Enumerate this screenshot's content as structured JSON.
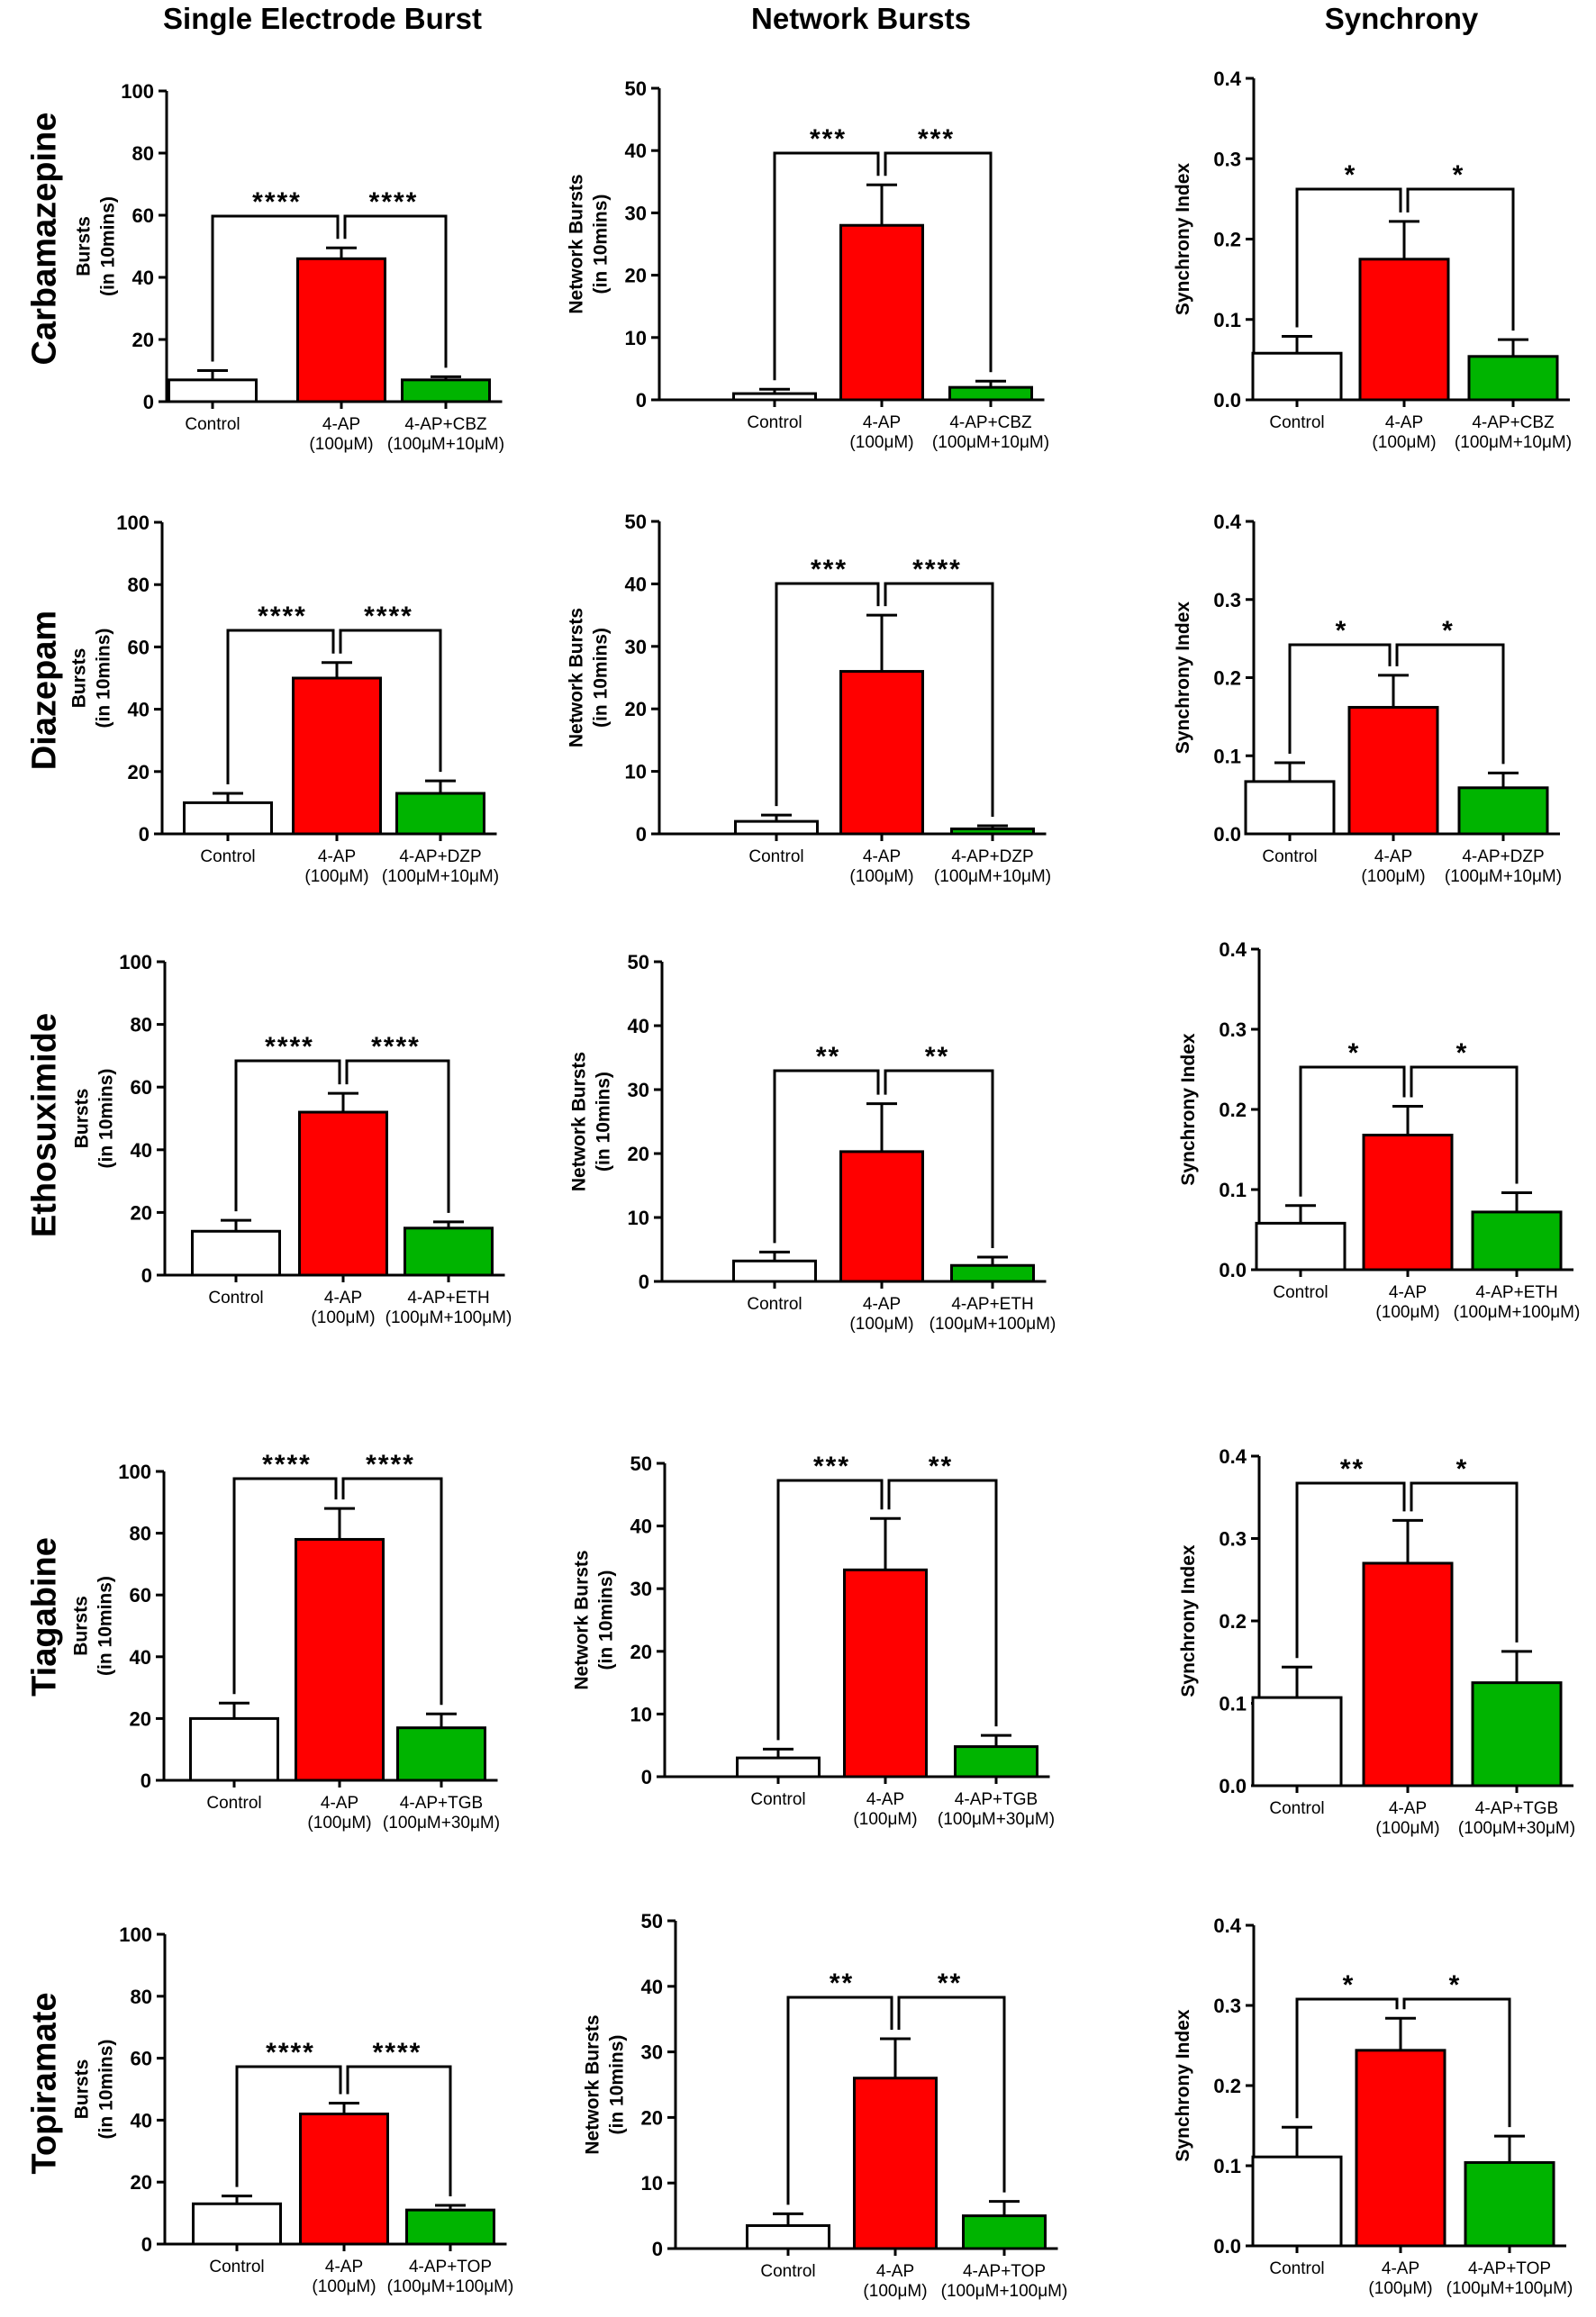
{
  "column_titles": [
    "Single Electrode Burst",
    "Network Bursts",
    "Synchrony"
  ],
  "row_labels": [
    "Carbamazepine",
    "Diazepam",
    "Ethosuximide",
    "Tiagabine",
    "Topiramate"
  ],
  "colors": {
    "control": "#ffffff",
    "fourap": "#ff0000",
    "drug": "#00b400",
    "stroke": "#000000"
  },
  "chart_data": [
    {
      "type": "bar",
      "drug": "Carbamazepine",
      "panel": "Single Electrode Burst",
      "ylabel": [
        "Bursts",
        "(in 10mins)"
      ],
      "ylim": [
        0,
        100
      ],
      "yticks": [
        "0",
        "20",
        "40",
        "60",
        "80",
        "100"
      ],
      "categories": [
        [
          "Control"
        ],
        [
          "4-AP",
          "(100μM)"
        ],
        [
          "4-AP+CBZ",
          "(100μM+10μM)"
        ]
      ],
      "values": [
        7,
        46,
        7
      ],
      "errors": [
        3,
        3.5,
        1
      ],
      "sig_left": "****",
      "sig_right": "****"
    },
    {
      "type": "bar",
      "drug": "Carbamazepine",
      "panel": "Network Bursts",
      "ylabel": [
        "Network Bursts",
        "(in 10mins)"
      ],
      "ylim": [
        0,
        50
      ],
      "yticks": [
        "0",
        "10",
        "20",
        "30",
        "40",
        "50"
      ],
      "categories": [
        [
          "Control"
        ],
        [
          "4-AP",
          "(100μM)"
        ],
        [
          "4-AP+CBZ",
          "(100μM+10μM)"
        ]
      ],
      "values": [
        1,
        28,
        2
      ],
      "errors": [
        0.7,
        6.5,
        1
      ],
      "sig_left": "***",
      "sig_right": "***"
    },
    {
      "type": "bar",
      "drug": "Carbamazepine",
      "panel": "Synchrony",
      "ylabel": [
        "Synchrony Index"
      ],
      "ylim": [
        0,
        0.4
      ],
      "yticks": [
        "0.0",
        "0.1",
        "0.2",
        "0.3",
        "0.4"
      ],
      "categories": [
        [
          "Control"
        ],
        [
          "4-AP",
          "(100μM)"
        ],
        [
          "4-AP+CBZ",
          "(100μM+10μM)"
        ]
      ],
      "values": [
        0.058,
        0.175,
        0.054
      ],
      "errors": [
        0.021,
        0.047,
        0.021
      ],
      "sig_left": "*",
      "sig_right": "*"
    },
    {
      "type": "bar",
      "drug": "Diazepam",
      "panel": "Single Electrode Burst",
      "ylabel": [
        "Bursts",
        "(in 10mins)"
      ],
      "ylim": [
        0,
        100
      ],
      "yticks": [
        "0",
        "20",
        "40",
        "60",
        "80",
        "100"
      ],
      "categories": [
        [
          "Control"
        ],
        [
          "4-AP",
          "(100μM)"
        ],
        [
          "4-AP+DZP",
          "(100μM+10μM)"
        ]
      ],
      "values": [
        10,
        50,
        13
      ],
      "errors": [
        3,
        5,
        4
      ],
      "sig_left": "****",
      "sig_right": "****"
    },
    {
      "type": "bar",
      "drug": "Diazepam",
      "panel": "Network Bursts",
      "ylabel": [
        "Network Bursts",
        "(in 10mins)"
      ],
      "ylim": [
        0,
        50
      ],
      "yticks": [
        "0",
        "10",
        "20",
        "30",
        "40",
        "50"
      ],
      "categories": [
        [
          "Control"
        ],
        [
          "4-AP",
          "(100μM)"
        ],
        [
          "4-AP+DZP",
          "(100μM+10μM)"
        ]
      ],
      "values": [
        2,
        26,
        0.8
      ],
      "errors": [
        1,
        9,
        0.5
      ],
      "sig_left": "***",
      "sig_right": "****"
    },
    {
      "type": "bar",
      "drug": "Diazepam",
      "panel": "Synchrony",
      "ylabel": [
        "Synchrony Index"
      ],
      "ylim": [
        0,
        0.4
      ],
      "yticks": [
        "0.0",
        "0.1",
        "0.2",
        "0.3",
        "0.4"
      ],
      "categories": [
        [
          "Control"
        ],
        [
          "4-AP",
          "(100μM)"
        ],
        [
          "4-AP+DZP",
          "(100μM+10μM)"
        ]
      ],
      "values": [
        0.067,
        0.162,
        0.059
      ],
      "errors": [
        0.024,
        0.041,
        0.019
      ],
      "sig_left": "*",
      "sig_right": "*"
    },
    {
      "type": "bar",
      "drug": "Ethosuximide",
      "panel": "Single Electrode Burst",
      "ylabel": [
        "Bursts",
        "(in 10mins)"
      ],
      "ylim": [
        0,
        100
      ],
      "yticks": [
        "0",
        "20",
        "40",
        "60",
        "80",
        "100"
      ],
      "categories": [
        [
          "Control"
        ],
        [
          "4-AP",
          "(100μM)"
        ],
        [
          "4-AP+ETH",
          "(100μM+100μM)"
        ]
      ],
      "values": [
        14,
        52,
        15
      ],
      "errors": [
        3.5,
        6,
        2
      ],
      "sig_left": "****",
      "sig_right": "****"
    },
    {
      "type": "bar",
      "drug": "Ethosuximide",
      "panel": "Network Bursts",
      "ylabel": [
        "Network Bursts",
        "(in 10mins)"
      ],
      "ylim": [
        0,
        50
      ],
      "yticks": [
        "0",
        "10",
        "20",
        "30",
        "40",
        "50"
      ],
      "categories": [
        [
          "Control"
        ],
        [
          "4-AP",
          "(100μM)"
        ],
        [
          "4-AP+ETH",
          "(100μM+100μM)"
        ]
      ],
      "values": [
        3.2,
        20.3,
        2.5
      ],
      "errors": [
        1.4,
        7.5,
        1.3
      ],
      "sig_left": "**",
      "sig_right": "**"
    },
    {
      "type": "bar",
      "drug": "Ethosuximide",
      "panel": "Synchrony",
      "ylabel": [
        "Synchrony Index"
      ],
      "ylim": [
        0,
        0.4
      ],
      "yticks": [
        "0.0",
        "0.1",
        "0.2",
        "0.3",
        "0.4"
      ],
      "categories": [
        [
          "Control"
        ],
        [
          "4-AP",
          "(100μM)"
        ],
        [
          "4-AP+ETH",
          "(100μM+100μM)"
        ]
      ],
      "values": [
        0.058,
        0.168,
        0.072
      ],
      "errors": [
        0.022,
        0.036,
        0.024
      ],
      "sig_left": "*",
      "sig_right": "*"
    },
    {
      "type": "bar",
      "drug": "Tiagabine",
      "panel": "Single Electrode Burst",
      "ylabel": [
        "Bursts",
        "(in 10mins)"
      ],
      "ylim": [
        0,
        100
      ],
      "yticks": [
        "0",
        "20",
        "40",
        "60",
        "80",
        "100"
      ],
      "categories": [
        [
          "Control"
        ],
        [
          "4-AP",
          "(100μM)"
        ],
        [
          "4-AP+TGB",
          "(100μM+30μM)"
        ]
      ],
      "values": [
        20,
        78,
        17
      ],
      "errors": [
        5,
        10,
        4.5
      ],
      "sig_left": "****",
      "sig_right": "****"
    },
    {
      "type": "bar",
      "drug": "Tiagabine",
      "panel": "Network Bursts",
      "ylabel": [
        "Network Bursts",
        "(in 10mins)"
      ],
      "ylim": [
        0,
        50
      ],
      "yticks": [
        "0",
        "10",
        "20",
        "30",
        "40",
        "50"
      ],
      "categories": [
        [
          "Control"
        ],
        [
          "4-AP",
          "(100μM)"
        ],
        [
          "4-AP+TGB",
          "(100μM+30μM)"
        ]
      ],
      "values": [
        3,
        33,
        4.8
      ],
      "errors": [
        1.4,
        8.2,
        1.8
      ],
      "sig_left": "***",
      "sig_right": "**"
    },
    {
      "type": "bar",
      "drug": "Tiagabine",
      "panel": "Synchrony",
      "ylabel": [
        "Synchrony Index"
      ],
      "ylim": [
        0,
        0.4
      ],
      "yticks": [
        "0.0",
        "0.1",
        "0.2",
        "0.3",
        "0.4"
      ],
      "categories": [
        [
          "Control"
        ],
        [
          "4-AP",
          "(100μM)"
        ],
        [
          "4-AP+TGB",
          "(100μM+30μM)"
        ]
      ],
      "values": [
        0.107,
        0.27,
        0.125
      ],
      "errors": [
        0.037,
        0.052,
        0.038
      ],
      "sig_left": "**",
      "sig_right": "*"
    },
    {
      "type": "bar",
      "drug": "Topiramate",
      "panel": "Single Electrode Burst",
      "ylabel": [
        "Bursts",
        "(in 10mins)"
      ],
      "ylim": [
        0,
        100
      ],
      "yticks": [
        "0",
        "20",
        "40",
        "60",
        "80",
        "100"
      ],
      "categories": [
        [
          "Control"
        ],
        [
          "4-AP",
          "(100μM)"
        ],
        [
          "4-AP+TOP",
          "(100μM+100μM)"
        ]
      ],
      "values": [
        13,
        42,
        11
      ],
      "errors": [
        2.5,
        3.5,
        1.5
      ],
      "sig_left": "****",
      "sig_right": "****"
    },
    {
      "type": "bar",
      "drug": "Topiramate",
      "panel": "Network Bursts",
      "ylabel": [
        "Network Bursts",
        "(in 10mins)"
      ],
      "ylim": [
        0,
        50
      ],
      "yticks": [
        "0",
        "10",
        "20",
        "30",
        "40",
        "50"
      ],
      "categories": [
        [
          "Control"
        ],
        [
          "4-AP",
          "(100μM)"
        ],
        [
          "4-AP+TOP",
          "(100μM+100μM)"
        ]
      ],
      "values": [
        3.5,
        26,
        5
      ],
      "errors": [
        1.8,
        6,
        2.2
      ],
      "sig_left": "**",
      "sig_right": "**"
    },
    {
      "type": "bar",
      "drug": "Topiramate",
      "panel": "Synchrony",
      "ylabel": [
        "Synchrony Index"
      ],
      "ylim": [
        0,
        0.4
      ],
      "yticks": [
        "0.0",
        "0.1",
        "0.2",
        "0.3",
        "0.4"
      ],
      "categories": [
        [
          "Control"
        ],
        [
          "4-AP",
          "(100μM)"
        ],
        [
          "4-AP+TOP",
          "(100μM+100μM)"
        ]
      ],
      "values": [
        0.111,
        0.244,
        0.104
      ],
      "errors": [
        0.037,
        0.04,
        0.033
      ],
      "sig_left": "*",
      "sig_right": "*"
    }
  ]
}
